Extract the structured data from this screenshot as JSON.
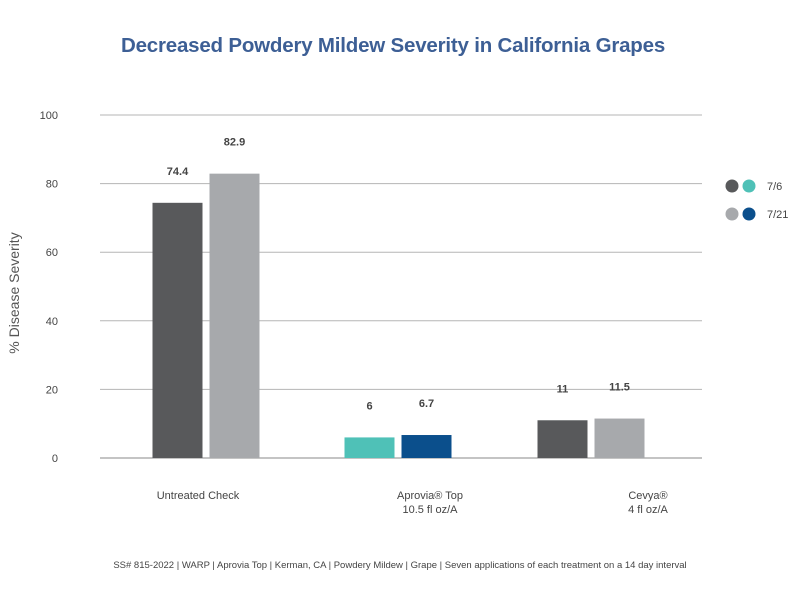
{
  "chart_data": {
    "type": "bar",
    "title": "Decreased Powdery Mildew Severity in California Grapes",
    "ylabel": "% Disease Severity",
    "xlabel": "",
    "ylim": [
      0,
      100
    ],
    "yticks": [
      0,
      20,
      40,
      60,
      80,
      100
    ],
    "grid": true,
    "legend_position": "right",
    "categories": [
      {
        "lines": [
          "Untreated Check"
        ]
      },
      {
        "lines": [
          "Aprovia® Top",
          "10.5 fl oz/A"
        ]
      },
      {
        "lines": [
          "Cevya®",
          "4 fl oz/A"
        ]
      }
    ],
    "series": [
      {
        "name": "7/6",
        "values": [
          74.4,
          6,
          11
        ],
        "labels": [
          "74.4",
          "6",
          "11"
        ]
      },
      {
        "name": "7/21",
        "values": [
          82.9,
          6.7,
          11.5
        ],
        "labels": [
          "82.9",
          "6.7",
          "11.5"
        ]
      }
    ],
    "bar_colors": [
      [
        "#58595b",
        "#a7a9ac"
      ],
      [
        "#4fc1b7",
        "#0b4f8c"
      ],
      [
        "#58595b",
        "#a7a9ac"
      ]
    ],
    "legend": [
      {
        "label": "7/6",
        "swatches": [
          "#58595b",
          "#4fc1b7"
        ]
      },
      {
        "label": "7/21",
        "swatches": [
          "#a7a9ac",
          "#0b4f8c"
        ]
      }
    ]
  },
  "footnote": "SS# 815-2022 | WARP | Aprovia Top | Kerman, CA | Powdery Mildew | Grape | Seven applications of each treatment on a 14 day interval"
}
